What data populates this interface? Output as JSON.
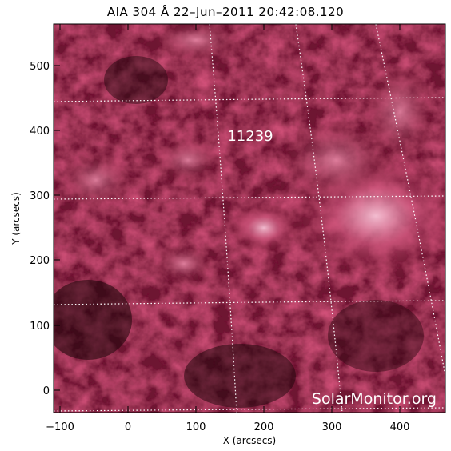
{
  "title": "AIA 304 Å 22–Jun–2011 20:42:08.120",
  "x_axis": {
    "label": "X (arcsecs)",
    "ticks": [
      "−100",
      "0",
      "100",
      "200",
      "300",
      "400"
    ]
  },
  "y_axis": {
    "label": "Y (arcsecs)",
    "ticks": [
      "0",
      "100",
      "200",
      "300",
      "400",
      "500"
    ]
  },
  "region_label": "11239",
  "watermark": "SolarMonitor.org",
  "colors": {
    "image_dark": "#1a0408",
    "image_mid": "#8a1a3a",
    "image_bright": "#f0a8c0",
    "grid": "#ffffff"
  }
}
